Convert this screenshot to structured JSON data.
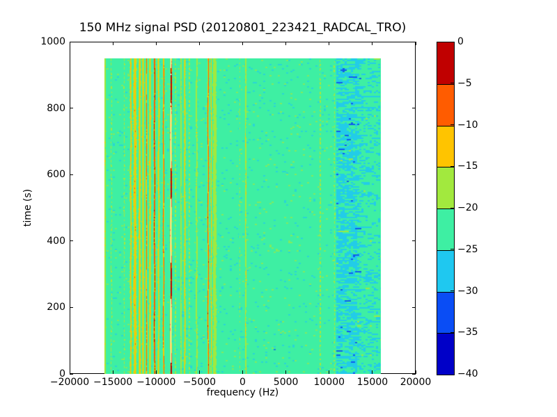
{
  "chart_data": {
    "type": "heatmap",
    "title": "150 MHz signal PSD (20120801_223421_RADCAL_TRO)",
    "xlabel": "frequency (Hz)",
    "ylabel": "time (s)",
    "xlim": [
      -20000,
      20000
    ],
    "ylim": [
      0,
      1000
    ],
    "xticks": {
      "values": [
        -20000,
        -15000,
        -10000,
        -5000,
        0,
        5000,
        10000,
        15000,
        20000
      ],
      "labels": [
        "−20000",
        "−15000",
        "−10000",
        "−5000",
        "0",
        "5000",
        "10000",
        "15000",
        "20000"
      ]
    },
    "yticks": {
      "values": [
        0,
        200,
        400,
        600,
        800,
        1000
      ],
      "labels": [
        "0",
        "200",
        "400",
        "600",
        "800",
        "1000"
      ]
    },
    "grid": false,
    "data_extent": {
      "freq_hz": [
        -16000,
        16000
      ],
      "time_s": [
        0,
        950
      ]
    },
    "background_level_db": -22.5,
    "colorbar": {
      "position": "right",
      "levels": [
        0,
        -5,
        -10,
        -15,
        -20,
        -25,
        -30,
        -35,
        -40
      ],
      "tick_labels": [
        "0",
        "−5",
        "−10",
        "−15",
        "−20",
        "−25",
        "−30",
        "−35",
        "−40"
      ],
      "bin_colors": [
        "#c00000",
        "#ff5c00",
        "#ffc400",
        "#a2e93e",
        "#3eefa3",
        "#1fc8f0",
        "#0a4df5",
        "#0000c8"
      ],
      "over_range_color": "#ffffff"
    },
    "stripes": [
      {
        "freq_hz": -15900,
        "peak_db": -15.5,
        "sigma_hz": 55,
        "dashed": false
      },
      {
        "freq_hz": -15170,
        "peak_db": -18.5,
        "sigma_hz": 45,
        "dashed": true
      },
      {
        "freq_hz": -13680,
        "peak_db": -17.5,
        "sigma_hz": 50,
        "dashed": true
      },
      {
        "freq_hz": -12920,
        "peak_db": -12.5,
        "sigma_hz": 65,
        "dashed": false
      },
      {
        "freq_hz": -12440,
        "peak_db": -11.0,
        "sigma_hz": 110,
        "dashed": false
      },
      {
        "freq_hz": -11910,
        "peak_db": -11.5,
        "sigma_hz": 75,
        "dashed": false
      },
      {
        "freq_hz": -11510,
        "peak_db": -12.0,
        "sigma_hz": 70,
        "dashed": false
      },
      {
        "freq_hz": -11110,
        "peak_db": -8.0,
        "sigma_hz": 50,
        "dashed": false
      },
      {
        "freq_hz": -10700,
        "peak_db": -12.5,
        "sigma_hz": 70,
        "dashed": false
      },
      {
        "freq_hz": -10180,
        "peak_db": -2.8,
        "sigma_hz": 55,
        "dashed": false
      },
      {
        "freq_hz": -9700,
        "peak_db": -12.5,
        "sigma_hz": 60,
        "dashed": false
      },
      {
        "freq_hz": -9135,
        "peak_db": -6.5,
        "sigma_hz": 50,
        "dashed": false
      },
      {
        "freq_hz": -8275,
        "peak_db": 3.0,
        "sigma_hz": 55,
        "dashed": false
      },
      {
        "freq_hz": -7770,
        "peak_db": -15.5,
        "sigma_hz": 45,
        "dashed": true
      },
      {
        "freq_hz": -7125,
        "peak_db": -16.5,
        "sigma_hz": 45,
        "dashed": false
      },
      {
        "freq_hz": -6680,
        "peak_db": -13.0,
        "sigma_hz": 55,
        "dashed": false
      },
      {
        "freq_hz": -6160,
        "peak_db": -17.0,
        "sigma_hz": 45,
        "dashed": true
      },
      {
        "freq_hz": -5315,
        "peak_db": -16.0,
        "sigma_hz": 55,
        "dashed": false
      },
      {
        "freq_hz": -3985,
        "peak_db": -5.8,
        "sigma_hz": 50,
        "dashed": false
      },
      {
        "freq_hz": -3625,
        "peak_db": -13.5,
        "sigma_hz": 45,
        "dashed": false
      },
      {
        "freq_hz": -3220,
        "peak_db": -16.5,
        "sigma_hz": 140,
        "dashed": false
      },
      {
        "freq_hz": -325,
        "peak_db": -19.0,
        "sigma_hz": 30,
        "dashed": true
      },
      {
        "freq_hz": 360,
        "peak_db": -14.8,
        "sigma_hz": 45,
        "dashed": false
      },
      {
        "freq_hz": 8970,
        "peak_db": -15.5,
        "sigma_hz": 40,
        "dashed": true
      },
      {
        "freq_hz": 10620,
        "peak_db": -18.0,
        "sigma_hz": 50,
        "dashed": true
      }
    ],
    "noise_bands": [
      {
        "freq_range_hz": [
          10800,
          13100
        ],
        "mean_db": -25.7,
        "std_db": 2.2
      },
      {
        "freq_range_hz": [
          13100,
          15800
        ],
        "mean_db": -23.8,
        "std_db": 1.6
      }
    ]
  }
}
